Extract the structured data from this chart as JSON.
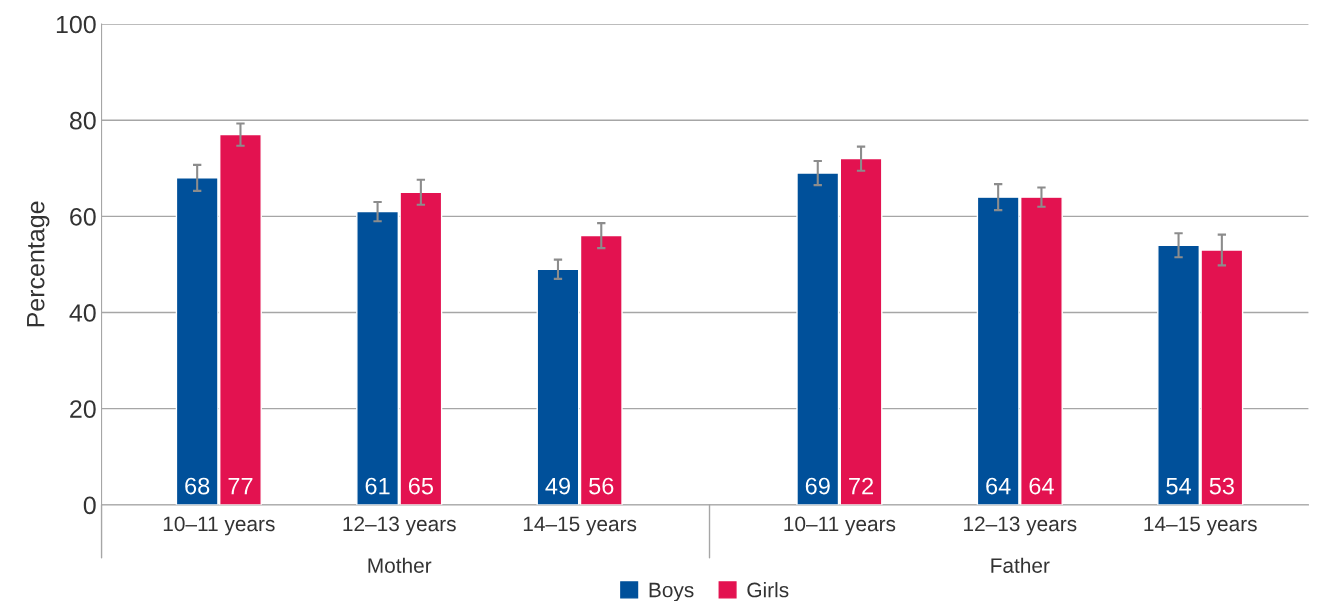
{
  "chart_data": {
    "type": "bar",
    "ylabel": "Percentage",
    "categories": [
      "10–11 years",
      "12–13 years",
      "14–15 years",
      "10–11 years",
      "12–13 years",
      "14–15 years"
    ],
    "series": [
      {
        "name": "Boys",
        "color": "#00509a",
        "values": [
          68,
          61,
          49,
          69,
          64,
          54
        ],
        "errors": [
          2.7,
          2,
          2,
          2.5,
          2.7,
          2.5
        ]
      },
      {
        "name": "Girls",
        "color": "#e31250",
        "values": [
          77,
          65,
          56,
          72,
          64,
          53
        ],
        "errors": [
          2.3,
          2.6,
          2.6,
          2.5,
          2,
          3.2
        ]
      }
    ],
    "annotations": [
      "Mother",
      "Father"
    ],
    "ylim": [
      0,
      100
    ],
    "yticks": [
      0,
      20,
      40,
      60,
      80,
      100
    ],
    "grid": "y",
    "legend": "bottom",
    "data_labels": true
  }
}
